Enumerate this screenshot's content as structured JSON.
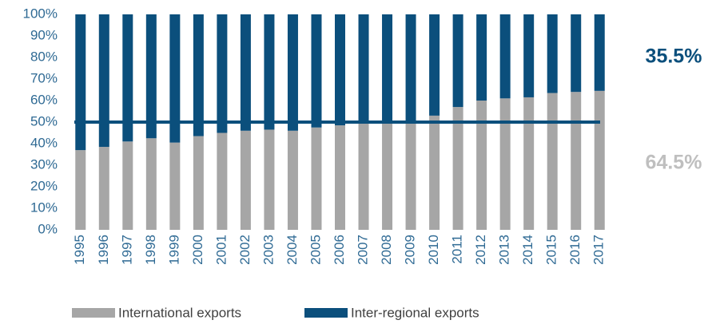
{
  "chart_data": {
    "type": "stacked_bar",
    "categories": [
      "1995",
      "1996",
      "1997",
      "1998",
      "1999",
      "2000",
      "2001",
      "2002",
      "2003",
      "2004",
      "2005",
      "2006",
      "2007",
      "2008",
      "2009",
      "2010",
      "2011",
      "2012",
      "2013",
      "2014",
      "2015",
      "2016",
      "2017"
    ],
    "series": [
      {
        "name": "International exports",
        "color": "#a6a6a6",
        "values": [
          37,
          38.5,
          41,
          42.5,
          40.5,
          43.5,
          45,
          46,
          46.5,
          46,
          47.5,
          48.5,
          49.5,
          49.5,
          49.5,
          53,
          57,
          60,
          61,
          61.5,
          63.5,
          64,
          64.5
        ]
      },
      {
        "name": "Inter-regional exports",
        "color": "#0b4f7c",
        "values": [
          63,
          61.5,
          59,
          57.5,
          59.5,
          56.5,
          55,
          54,
          53.5,
          54,
          52.5,
          51.5,
          50.5,
          50.5,
          50.5,
          47,
          43,
          40,
          39,
          38.5,
          36.5,
          36,
          35.5
        ]
      }
    ],
    "reference_line": {
      "value": 50,
      "color": "#0b4f7c"
    },
    "annotations": [
      {
        "text": "35.5%",
        "color": "#0b4f7c"
      },
      {
        "text": "64.5%",
        "color": "#bfbfbf"
      }
    ],
    "ylim": [
      0,
      100
    ],
    "yticks": [
      {
        "value": 0,
        "label": "0%"
      },
      {
        "value": 10,
        "label": "10%"
      },
      {
        "value": 20,
        "label": "20%"
      },
      {
        "value": 30,
        "label": "30%"
      },
      {
        "value": 40,
        "label": "40%"
      },
      {
        "value": 50,
        "label": "50%"
      },
      {
        "value": 60,
        "label": "60%"
      },
      {
        "value": 70,
        "label": "70%"
      },
      {
        "value": 80,
        "label": "80%"
      },
      {
        "value": 90,
        "label": "90%"
      },
      {
        "value": 100,
        "label": "100%"
      }
    ]
  }
}
